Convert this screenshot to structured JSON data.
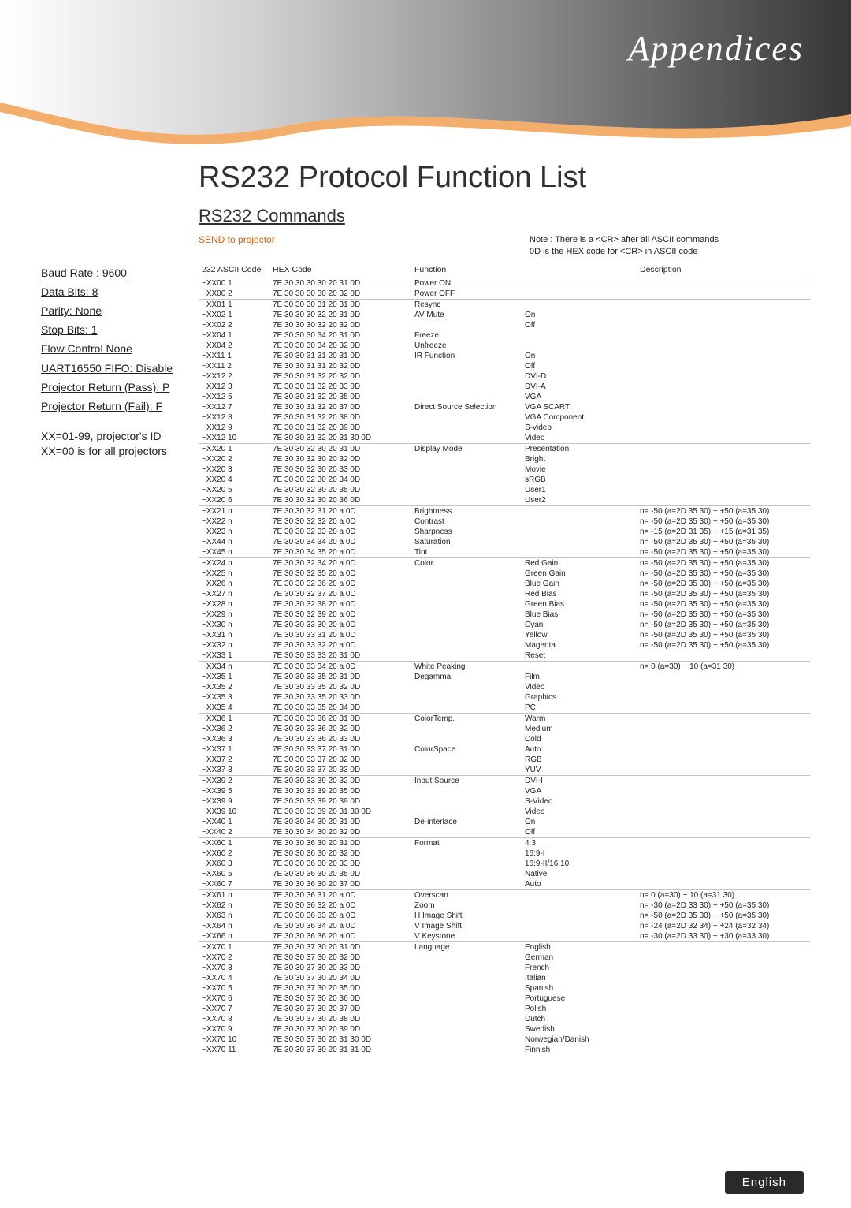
{
  "banner_title": "Appendices",
  "page_title": "RS232 Protocol Function List",
  "sub_title": "RS232 Commands",
  "send_label": "SEND to projector",
  "note_text": "Note : There is a <CR> after all ASCII commands\n0D is the HEX code for <CR> in ASCII code",
  "sidebar_params": [
    "Baud Rate : 9600",
    "Data Bits: 8",
    "Parity: None",
    "Stop Bits: 1",
    "Flow Control None",
    "UART16550 FIFO: Disable",
    "Projector Return (Pass): P",
    "Projector Return (Fail): F"
  ],
  "xx_note": "XX=01-99, projector's ID\nXX=00 is for all projectors",
  "headers": {
    "ascii": "232 ASCII Code",
    "hex": "HEX Code",
    "func": "Function",
    "desc": "Description"
  },
  "groups": [
    {
      "rows": [
        {
          "a": "~XX00 1",
          "h": "7E 30 30 30 30 20 31 0D",
          "f": "Power ON",
          "v": "",
          "d": ""
        },
        {
          "a": "~XX00 2",
          "h": "7E 30 30 30 30 20 32 0D",
          "f": "Power OFF",
          "v": "",
          "d": ""
        }
      ]
    },
    {
      "rows": [
        {
          "a": "~XX01 1",
          "h": "7E 30 30 30 31 20 31 0D",
          "f": "Resync",
          "v": "",
          "d": ""
        },
        {
          "a": "~XX02 1",
          "h": "7E 30 30 30 32 20 31 0D",
          "f": "AV Mute",
          "v": "On",
          "d": ""
        },
        {
          "a": "~XX02 2",
          "h": "7E 30 30 30 32 20 32 0D",
          "f": "",
          "v": "Off",
          "d": ""
        },
        {
          "a": "~XX04 1",
          "h": "7E 30 30 30 34 20 31 0D",
          "f": "Freeze",
          "v": "",
          "d": ""
        },
        {
          "a": "~XX04 2",
          "h": "7E 30 30 30 34 20 32 0D",
          "f": "Unfreeze",
          "v": "",
          "d": ""
        },
        {
          "a": "~XX11 1",
          "h": "7E 30 30 31 31 20 31 0D",
          "f": "IR Function",
          "v": "On",
          "d": ""
        },
        {
          "a": "~XX11 2",
          "h": "7E 30 30 31 31 20 32 0D",
          "f": "",
          "v": "Off",
          "d": ""
        },
        {
          "a": "~XX12 2",
          "h": "7E 30 30 31 32 20 32 0D",
          "f": "",
          "v": "DVI-D",
          "d": ""
        },
        {
          "a": "~XX12 3",
          "h": "7E 30 30 31 32 20 33 0D",
          "f": "",
          "v": "DVI-A",
          "d": ""
        },
        {
          "a": "~XX12 5",
          "h": "7E 30 30 31 32 20 35 0D",
          "f": "",
          "v": "VGA",
          "d": ""
        },
        {
          "a": "~XX12 7",
          "h": "7E 30 30 31 32 20 37 0D",
          "f": "Direct Source Selection",
          "v": "VGA SCART",
          "d": ""
        },
        {
          "a": "~XX12 8",
          "h": "7E 30 30 31 32 20 38 0D",
          "f": "",
          "v": "VGA Component",
          "d": ""
        },
        {
          "a": "~XX12 9",
          "h": "7E 30 30 31 32 20 39 0D",
          "f": "",
          "v": "S-video",
          "d": ""
        },
        {
          "a": "~XX12 10",
          "h": "7E 30 30 31 32 20 31 30 0D",
          "f": "",
          "v": "Video",
          "d": ""
        }
      ]
    },
    {
      "rows": [
        {
          "a": "~XX20 1",
          "h": "7E 30 30 32 30 20 31 0D",
          "f": "Display Mode",
          "v": "Presentation",
          "d": ""
        },
        {
          "a": "~XX20 2",
          "h": "7E 30 30 32 30 20 32 0D",
          "f": "",
          "v": "Bright",
          "d": ""
        },
        {
          "a": "~XX20 3",
          "h": "7E 30 30 32 30 20 33 0D",
          "f": "",
          "v": "Movie",
          "d": ""
        },
        {
          "a": "~XX20 4",
          "h": "7E 30 30 32 30 20 34 0D",
          "f": "",
          "v": "sRGB",
          "d": ""
        },
        {
          "a": "~XX20 5",
          "h": "7E 30 30 32 30 20 35 0D",
          "f": "",
          "v": "User1",
          "d": ""
        },
        {
          "a": "~XX20 6",
          "h": "7E 30 30 32 30 20 36 0D",
          "f": "",
          "v": "User2",
          "d": ""
        }
      ]
    },
    {
      "rows": [
        {
          "a": "~XX21 n",
          "h": "7E 30 30 32 31 20 a 0D",
          "f": "Brightness",
          "v": "",
          "d": "n= -50 (a=2D 35 30) ~ +50 (a=35 30)"
        },
        {
          "a": "~XX22 n",
          "h": "7E 30 30 32 32 20 a 0D",
          "f": "Contrast",
          "v": "",
          "d": "n= -50 (a=2D 35 30) ~ +50 (a=35 30)"
        },
        {
          "a": "~XX23 n",
          "h": "7E 30 30 32 33 20 a 0D",
          "f": "Sharpness",
          "v": "",
          "d": "n= -15 (a=2D 31 35) ~ +15 (a=31 35)"
        },
        {
          "a": "~XX44 n",
          "h": "7E 30 30 34 34 20 a 0D",
          "f": "Saturation",
          "v": "",
          "d": "n= -50 (a=2D 35 30) ~ +50 (a=35 30)"
        },
        {
          "a": "~XX45 n",
          "h": "7E 30 30 34 35 20 a 0D",
          "f": "Tint",
          "v": "",
          "d": "n= -50 (a=2D 35 30) ~ +50 (a=35 30)"
        }
      ]
    },
    {
      "rows": [
        {
          "a": "~XX24 n",
          "h": "7E 30 30 32 34 20 a 0D",
          "f": "Color",
          "v": "Red Gain",
          "d": "n= -50 (a=2D 35 30) ~ +50 (a=35 30)"
        },
        {
          "a": "~XX25 n",
          "h": "7E 30 30 32 35 20 a 0D",
          "f": "",
          "v": "Green Gain",
          "d": "n= -50 (a=2D 35 30) ~ +50 (a=35 30)"
        },
        {
          "a": "~XX26 n",
          "h": "7E 30 30 32 36 20 a 0D",
          "f": "",
          "v": "Blue Gain",
          "d": "n= -50 (a=2D 35 30) ~ +50 (a=35 30)"
        },
        {
          "a": "~XX27 n",
          "h": "7E 30 30 32 37 20 a 0D",
          "f": "",
          "v": "Red Bias",
          "d": "n= -50 (a=2D 35 30) ~ +50 (a=35 30)"
        },
        {
          "a": "~XX28 n",
          "h": "7E 30 30 32 38 20 a 0D",
          "f": "",
          "v": "Green Bias",
          "d": "n= -50 (a=2D 35 30) ~ +50 (a=35 30)"
        },
        {
          "a": "~XX29 n",
          "h": "7E 30 30 32 39 20 a 0D",
          "f": "",
          "v": "Blue Bias",
          "d": "n= -50 (a=2D 35 30) ~ +50 (a=35 30)"
        },
        {
          "a": "~XX30 n",
          "h": "7E 30 30 33 30 20 a 0D",
          "f": "",
          "v": "Cyan",
          "d": "n= -50 (a=2D 35 30) ~ +50 (a=35 30)"
        },
        {
          "a": "~XX31 n",
          "h": "7E 30 30 33 31 20 a 0D",
          "f": "",
          "v": "Yellow",
          "d": "n= -50 (a=2D 35 30) ~ +50 (a=35 30)"
        },
        {
          "a": "~XX32 n",
          "h": "7E 30 30 33 32 20 a 0D",
          "f": "",
          "v": "Magenta",
          "d": "n= -50 (a=2D 35 30) ~ +50 (a=35 30)"
        },
        {
          "a": "~XX33 1",
          "h": "7E 30 30 33 33 20 31 0D",
          "f": "",
          "v": "Reset",
          "d": ""
        }
      ]
    },
    {
      "rows": [
        {
          "a": "~XX34 n",
          "h": "7E 30 30 33 34 20 a 0D",
          "f": "White Peaking",
          "v": "",
          "d": "n= 0 (a=30) ~ 10 (a=31 30)"
        },
        {
          "a": "~XX35 1",
          "h": "7E 30 30 33 35 20 31 0D",
          "f": "Degamma",
          "v": "Film",
          "d": ""
        },
        {
          "a": "~XX35 2",
          "h": "7E 30 30 33 35 20 32 0D",
          "f": "",
          "v": "Video",
          "d": ""
        },
        {
          "a": "~XX35 3",
          "h": "7E 30 30 33 35 20 33 0D",
          "f": "",
          "v": "Graphics",
          "d": ""
        },
        {
          "a": "~XX35 4",
          "h": "7E 30 30 33 35 20 34 0D",
          "f": "",
          "v": "PC",
          "d": ""
        }
      ]
    },
    {
      "rows": [
        {
          "a": "~XX36 1",
          "h": "7E 30 30 33 36 20 31 0D",
          "f": "ColorTemp.",
          "v": "Warm",
          "d": ""
        },
        {
          "a": "~XX36 2",
          "h": "7E 30 30 33 36 20 32 0D",
          "f": "",
          "v": "Medium",
          "d": ""
        },
        {
          "a": "~XX36 3",
          "h": "7E 30 30 33 36 20 33 0D",
          "f": "",
          "v": "Cold",
          "d": ""
        },
        {
          "a": "~XX37 1",
          "h": "7E 30 30 33 37 20 31 0D",
          "f": "ColorSpace",
          "v": "Auto",
          "d": ""
        },
        {
          "a": "~XX37 2",
          "h": "7E 30 30 33 37 20 32 0D",
          "f": "",
          "v": "RGB",
          "d": ""
        },
        {
          "a": "~XX37 3",
          "h": "7E 30 30 33 37 20 33 0D",
          "f": "",
          "v": "YUV",
          "d": ""
        }
      ]
    },
    {
      "rows": [
        {
          "a": "~XX39 2",
          "h": "7E 30 30 33 39 20 32 0D",
          "f": "Input Source",
          "v": "DVI-I",
          "d": ""
        },
        {
          "a": "~XX39 5",
          "h": "7E 30 30 33 39 20 35 0D",
          "f": "",
          "v": "VGA",
          "d": ""
        },
        {
          "a": "~XX39 9",
          "h": "7E 30 30 33 39 20 39 0D",
          "f": "",
          "v": "S-Video",
          "d": ""
        },
        {
          "a": "~XX39 10",
          "h": "7E 30 30 33 39 20 31 30 0D",
          "f": "",
          "v": "Video",
          "d": ""
        },
        {
          "a": "~XX40 1",
          "h": "7E 30 30 34 30 20 31 0D",
          "f": "De-interlace",
          "v": "On",
          "d": ""
        },
        {
          "a": "~XX40 2",
          "h": "7E 30 30 34 30 20 32 0D",
          "f": "",
          "v": "Off",
          "d": ""
        }
      ]
    },
    {
      "rows": [
        {
          "a": "~XX60 1",
          "h": "7E 30 30 36 30 20 31 0D",
          "f": "Format",
          "v": "4:3",
          "d": ""
        },
        {
          "a": "~XX60 2",
          "h": "7E 30 30 36 30 20 32 0D",
          "f": "",
          "v": "16:9-I",
          "d": ""
        },
        {
          "a": "~XX60 3",
          "h": "7E 30 30 36 30 20 33 0D",
          "f": "",
          "v": "16:9-II/16:10",
          "d": ""
        },
        {
          "a": "~XX60 5",
          "h": "7E 30 30 36 30 20 35 0D",
          "f": "",
          "v": "Native",
          "d": ""
        },
        {
          "a": "~XX60 7",
          "h": "7E 30 30 36 30 20 37 0D",
          "f": "",
          "v": "Auto",
          "d": ""
        }
      ]
    },
    {
      "rows": [
        {
          "a": "~XX61 n",
          "h": "7E 30 30 36 31 20 a 0D",
          "f": "Overscan",
          "v": "",
          "d": "n= 0 (a=30) ~ 10 (a=31 30)"
        },
        {
          "a": "~XX62 n",
          "h": "7E 30 30 36 32 20 a 0D",
          "f": "Zoom",
          "v": "",
          "d": "n= -30 (a=2D 33 30) ~ +50 (a=35 30)"
        },
        {
          "a": "~XX63 n",
          "h": "7E 30 30 36 33 20 a 0D",
          "f": "H Image Shift",
          "v": "",
          "d": "n= -50 (a=2D 35 30) ~ +50 (a=35 30)"
        },
        {
          "a": "~XX64 n",
          "h": "7E 30 30 36 34 20 a 0D",
          "f": "V Image Shift",
          "v": "",
          "d": "n= -24 (a=2D 32 34) ~ +24 (a=32 34)"
        },
        {
          "a": "~XX66 n",
          "h": "7E 30 30 36 36 20 a 0D",
          "f": "V Keystone",
          "v": "",
          "d": "n= -30 (a=2D 33 30) ~ +30 (a=33 30)"
        }
      ]
    },
    {
      "rows": [
        {
          "a": "~XX70 1",
          "h": "7E 30 30 37 30 20 31 0D",
          "f": "Language",
          "v": "English",
          "d": ""
        },
        {
          "a": "~XX70 2",
          "h": "7E 30 30 37 30 20 32 0D",
          "f": "",
          "v": "German",
          "d": ""
        },
        {
          "a": "~XX70 3",
          "h": "7E 30 30 37 30 20 33 0D",
          "f": "",
          "v": "French",
          "d": ""
        },
        {
          "a": "~XX70 4",
          "h": "7E 30 30 37 30 20 34 0D",
          "f": "",
          "v": "Italian",
          "d": ""
        },
        {
          "a": "~XX70 5",
          "h": "7E 30 30 37 30 20 35 0D",
          "f": "",
          "v": "Spanish",
          "d": ""
        },
        {
          "a": "~XX70 6",
          "h": "7E 30 30 37 30 20 36 0D",
          "f": "",
          "v": "Portuguese",
          "d": ""
        },
        {
          "a": "~XX70 7",
          "h": "7E 30 30 37 30 20 37 0D",
          "f": "",
          "v": "Polish",
          "d": ""
        },
        {
          "a": "~XX70 8",
          "h": "7E 30 30 37 30 20 38 0D",
          "f": "",
          "v": "Dutch",
          "d": ""
        },
        {
          "a": "~XX70 9",
          "h": "7E 30 30 37 30 20 39 0D",
          "f": "",
          "v": "Swedish",
          "d": ""
        },
        {
          "a": "~XX70 10",
          "h": "7E 30 30 37 30 20 31 30 0D",
          "f": "",
          "v": "Norwegian/Danish",
          "d": ""
        },
        {
          "a": "~XX70 11",
          "h": "7E 30 30 37 30 20 31 31 0D",
          "f": "",
          "v": "Finnish",
          "d": ""
        }
      ]
    }
  ],
  "footer_label": "English",
  "colors": {
    "banner_grad_start": "#ffffff",
    "banner_grad_mid": "#b8b8b8",
    "banner_grad_end": "#363636",
    "accent_orange": "#e65a00",
    "rule": "#c4c4c4",
    "pill_bg": "#2a2a2a"
  }
}
